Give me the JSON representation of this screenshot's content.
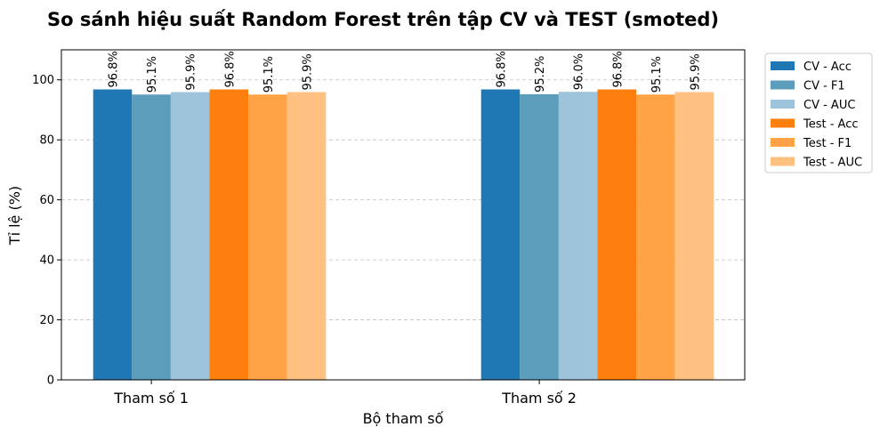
{
  "chart_data": {
    "type": "bar",
    "title": "So sánh hiệu suất Random Forest trên tập CV và TEST (smoted)",
    "xlabel": "Bộ tham số",
    "ylabel": "Tỉ lệ (%)",
    "ylim": [
      0,
      110
    ],
    "yticks": [
      0,
      20,
      40,
      60,
      80,
      100
    ],
    "grid": "y-dashed",
    "legend_position": "outside-right",
    "categories": [
      "Tham số 1",
      "Tham số 2"
    ],
    "series": [
      {
        "name": "CV - Acc",
        "color": "#1f77b4",
        "values": [
          96.8,
          96.8
        ],
        "labels": [
          "96.8%",
          "96.8%"
        ]
      },
      {
        "name": "CV - F1",
        "color": "#5b9dba",
        "values": [
          95.1,
          95.2
        ],
        "labels": [
          "95.1%",
          "95.2%"
        ]
      },
      {
        "name": "CV - AUC",
        "color": "#9ec4db",
        "values": [
          95.9,
          96.0
        ],
        "labels": [
          "95.9%",
          "96.0%"
        ]
      },
      {
        "name": "Test - Acc",
        "color": "#ff7f0e",
        "values": [
          96.8,
          96.8
        ],
        "labels": [
          "96.8%",
          "96.8%"
        ]
      },
      {
        "name": "Test - F1",
        "color": "#ffa346",
        "values": [
          95.1,
          95.1
        ],
        "labels": [
          "95.1%",
          "95.1%"
        ]
      },
      {
        "name": "Test - AUC",
        "color": "#ffc080",
        "values": [
          95.9,
          95.9
        ],
        "labels": [
          "95.9%",
          "95.9%"
        ]
      }
    ]
  }
}
